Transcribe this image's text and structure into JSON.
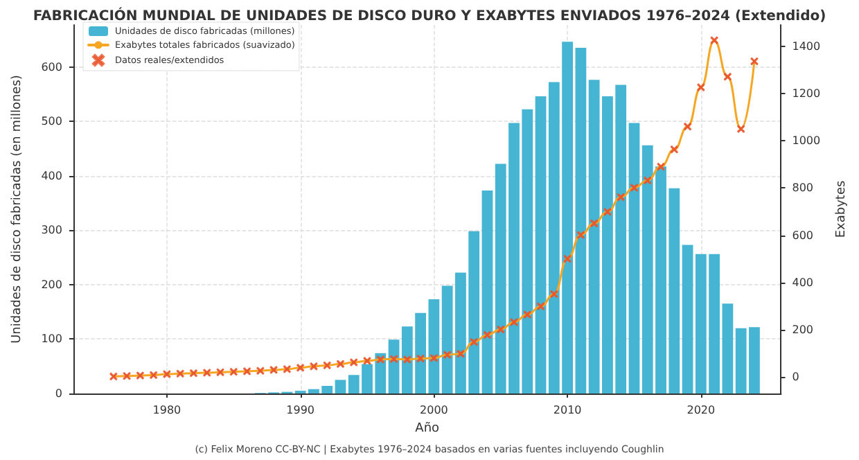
{
  "chart_data": {
    "type": "bar",
    "title": "FABRICACIÓN MUNDIAL DE UNIDADES DE DISCO DURO Y EXABYTES ENVIADOS 1976–2024 (Extendido)",
    "xlabel": "Año",
    "ylabel": "Unidades de disco fabricadas (en millones)",
    "y2label": "Exabytes",
    "x": [
      1976,
      1977,
      1978,
      1979,
      1980,
      1981,
      1982,
      1983,
      1984,
      1985,
      1986,
      1987,
      1988,
      1989,
      1990,
      1991,
      1992,
      1993,
      1994,
      1995,
      1996,
      1997,
      1998,
      1999,
      2000,
      2001,
      2002,
      2003,
      2004,
      2005,
      2006,
      2007,
      2008,
      2009,
      2010,
      2011,
      2012,
      2013,
      2014,
      2015,
      2016,
      2017,
      2018,
      2019,
      2020,
      2021,
      2022,
      2023,
      2024
    ],
    "series": [
      {
        "name": "Unidades de disco fabricadas (millones)",
        "color": "#45b5d3",
        "values": [
          null,
          null,
          null,
          null,
          null,
          null,
          null,
          null,
          null,
          null,
          null,
          1,
          2,
          3,
          5,
          8,
          14,
          25,
          34,
          54,
          74,
          99,
          123,
          148,
          173,
          198,
          222,
          298,
          373,
          422,
          497,
          522,
          546,
          572,
          646,
          635,
          576,
          546,
          567,
          497,
          456,
          417,
          377,
          273,
          256,
          256,
          165,
          120,
          122
        ]
      },
      {
        "name": "Exabytes totales fabricados (suavizado)",
        "type": "line",
        "axis": "y2",
        "color": "#f5a623",
        "marker": "none",
        "line_style": "solid",
        "values": [
          2,
          4,
          6,
          8,
          12,
          14,
          16,
          18,
          20,
          22,
          24,
          26,
          30,
          33,
          39,
          45,
          49,
          55,
          62,
          68,
          74,
          76,
          74,
          78,
          80,
          94,
          98,
          148,
          178,
          201,
          232,
          264,
          299,
          351,
          500,
          601,
          650,
          699,
          761,
          801,
          832,
          890,
          963,
          1060,
          1226,
          1425,
          1271,
          1050,
          1336
        ]
      },
      {
        "name": "Datos reales/extendidos",
        "type": "scatter",
        "axis": "y2",
        "color": "#e8552a",
        "marker": "cross",
        "values": [
          2,
          4,
          6,
          8,
          12,
          14,
          16,
          18,
          20,
          22,
          24,
          26,
          30,
          33,
          39,
          45,
          49,
          55,
          62,
          68,
          74,
          76,
          74,
          78,
          80,
          94,
          98,
          148,
          178,
          201,
          232,
          264,
          299,
          351,
          500,
          601,
          650,
          699,
          761,
          801,
          832,
          890,
          963,
          1060,
          1226,
          1425,
          1271,
          1050,
          1336
        ]
      }
    ],
    "xlim": [
      1973,
      2026
    ],
    "xticks": [
      1980,
      1990,
      2000,
      2010,
      2020
    ],
    "ylim": [
      0,
      677
    ],
    "yticks": [
      0,
      100,
      200,
      300,
      400,
      500,
      600
    ],
    "y2lim": [
      -70,
      1490
    ],
    "y2ticks": [
      0,
      200,
      400,
      600,
      800,
      1000,
      1200,
      1400
    ],
    "grid": true,
    "legend": "top left",
    "annotations": [
      "(c) Felix Moreno CC-BY-NC | Exabytes 1976–2024 basados en varias fuentes incluyendo Coughlin"
    ]
  }
}
